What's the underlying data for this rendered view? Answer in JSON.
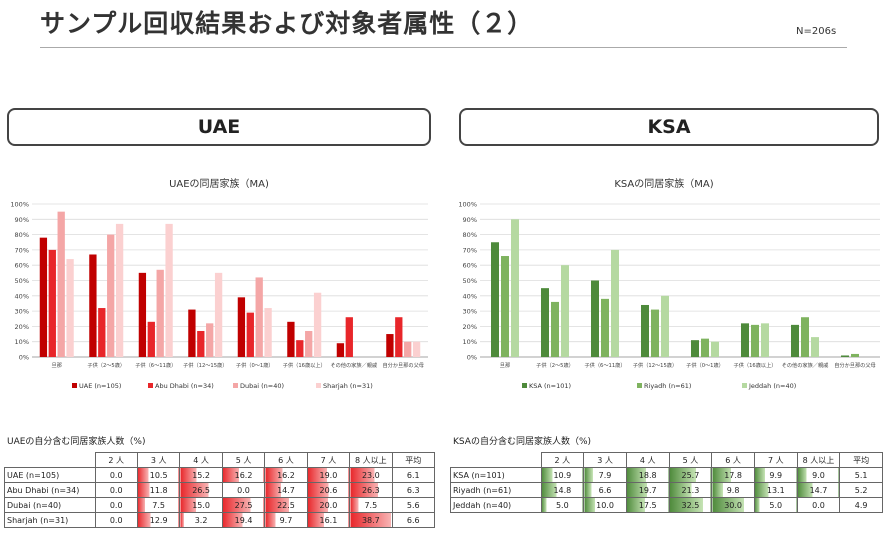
{
  "header": {
    "title": "サンプル回収結果および対象者属性（２）",
    "sample_size": "N=206s"
  },
  "regions": {
    "uae": "UAE",
    "ksa": "KSA"
  },
  "colors": {
    "uae": [
      "#c00000",
      "#e8262a",
      "#f4a6a6",
      "#fbd0d0"
    ],
    "ksa": [
      "#4e8a3b",
      "#7fb35f",
      "#b5d9a1"
    ],
    "uae_bar": [
      "#e8262a",
      "#f8b4b4"
    ],
    "ksa_bar": [
      "#4e8a3b",
      "#c5e3b4"
    ]
  },
  "chart_data": [
    {
      "type": "bar",
      "title": "UAEの同居家族（MA)",
      "ylim": [
        0,
        100
      ],
      "yticks": [
        "0%",
        "10%",
        "20%",
        "30%",
        "40%",
        "50%",
        "60%",
        "70%",
        "80%",
        "90%",
        "100%"
      ],
      "categories": [
        "旦那",
        "子供（2～5歳）",
        "子供（6～11歳）",
        "子供（12～15歳）",
        "子供（0～1歳）",
        "子供（16歳以上）",
        "その他の家族／親戚",
        "自分か旦那の父母"
      ],
      "series": [
        {
          "name": "UAE (n=105)",
          "values": [
            78,
            67,
            55,
            31,
            39,
            23,
            9,
            15
          ]
        },
        {
          "name": "Abu Dhabi (n=34)",
          "values": [
            70,
            32,
            23,
            17,
            29,
            11,
            26,
            26
          ]
        },
        {
          "name": "Dubai (n=40)",
          "values": [
            95,
            80,
            57,
            22,
            52,
            17,
            0,
            10
          ]
        },
        {
          "name": "Sharjah (n=31)",
          "values": [
            64,
            87,
            87,
            55,
            32,
            42,
            0,
            10
          ]
        }
      ],
      "legend_position": "bottom",
      "grid": true
    },
    {
      "type": "bar",
      "title": "KSAの同居家族（MA)",
      "ylim": [
        0,
        100
      ],
      "yticks": [
        "0%",
        "10%",
        "20%",
        "30%",
        "40%",
        "50%",
        "60%",
        "70%",
        "80%",
        "90%",
        "100%"
      ],
      "categories": [
        "旦那",
        "子供（2～5歳）",
        "子供（6～11歳）",
        "子供（12～15歳）",
        "子供（0～1歳）",
        "子供（16歳以上）",
        "その他の家族／親戚",
        "自分か旦那の父母"
      ],
      "series": [
        {
          "name": "KSA (n=101)",
          "values": [
            75,
            45,
            50,
            34,
            11,
            22,
            21,
            1
          ]
        },
        {
          "name": "Riyadh (n=61)",
          "values": [
            66,
            36,
            38,
            31,
            12,
            21,
            26,
            2
          ]
        },
        {
          "name": "Jeddah (n=40)",
          "values": [
            90,
            60,
            70,
            40,
            10,
            22,
            13,
            0
          ]
        }
      ],
      "legend_position": "bottom",
      "grid": true
    },
    {
      "type": "table",
      "title": "UAEの自分含む同居家族人数（%)",
      "columns": [
        "2 人",
        "3 人",
        "4 人",
        "5 人",
        "6 人",
        "7 人",
        "8 人以上",
        "平均"
      ],
      "rows": [
        {
          "label": "UAE (n=105)",
          "values": [
            0.0,
            10.5,
            15.2,
            16.2,
            16.2,
            19.0,
            23.0
          ],
          "avg": "6.1"
        },
        {
          "label": "Abu Dhabi (n=34)",
          "values": [
            0.0,
            11.8,
            26.5,
            0.0,
            14.7,
            20.6,
            26.3
          ],
          "avg": "6.3"
        },
        {
          "label": "Dubai (n=40)",
          "values": [
            0.0,
            7.5,
            15.0,
            27.5,
            22.5,
            20.0,
            7.5
          ],
          "avg": "5.6"
        },
        {
          "label": "Sharjah (n=31)",
          "values": [
            0.0,
            12.9,
            3.2,
            19.4,
            9.7,
            16.1,
            38.7
          ],
          "avg": "6.6"
        }
      ]
    },
    {
      "type": "table",
      "title": "KSAの自分含む同居家族人数（%)",
      "columns": [
        "2 人",
        "3 人",
        "4 人",
        "5 人",
        "6 人",
        "7 人",
        "8 人以上",
        "平均"
      ],
      "rows": [
        {
          "label": "KSA (n=101)",
          "values": [
            10.9,
            7.9,
            18.8,
            25.7,
            17.8,
            9.9,
            9.0
          ],
          "avg": "5.1"
        },
        {
          "label": "Riyadh (n=61)",
          "values": [
            14.8,
            6.6,
            19.7,
            21.3,
            9.8,
            13.1,
            14.7
          ],
          "avg": "5.2"
        },
        {
          "label": "Jeddah (n=40)",
          "values": [
            5.0,
            10.0,
            17.5,
            32.5,
            30.0,
            5.0,
            0.0
          ],
          "avg": "4.9"
        }
      ]
    }
  ]
}
